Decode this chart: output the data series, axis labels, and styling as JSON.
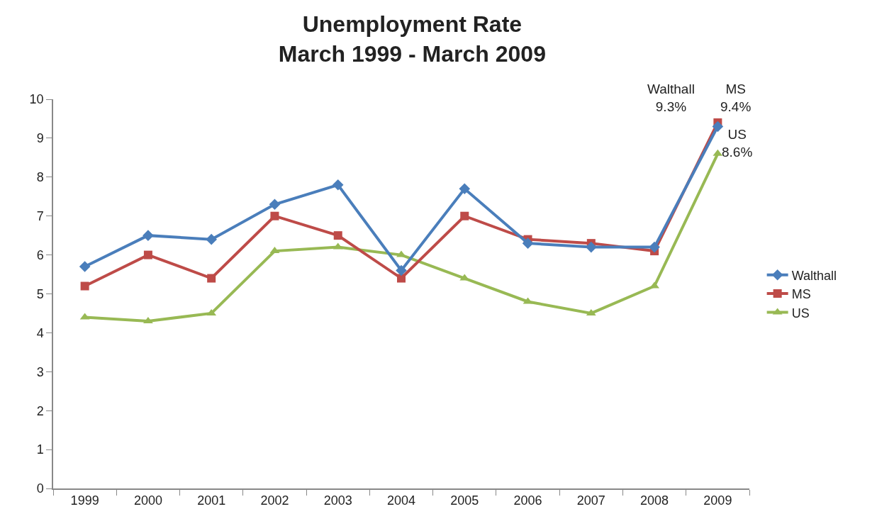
{
  "chart_data": {
    "type": "line",
    "title": "Unemployment Rate\nMarch 1999 - March 2009",
    "categories": [
      "1999",
      "2000",
      "2001",
      "2002",
      "2003",
      "2004",
      "2005",
      "2006",
      "2007",
      "2008",
      "2009"
    ],
    "series": [
      {
        "name": "Walthall",
        "color": "#4a7ebb",
        "marker": "diamond",
        "values": [
          5.7,
          6.5,
          6.4,
          7.3,
          7.8,
          5.6,
          7.7,
          6.3,
          6.2,
          6.2,
          9.3
        ]
      },
      {
        "name": "MS",
        "color": "#be4b48",
        "marker": "square",
        "values": [
          5.2,
          6.0,
          5.4,
          7.0,
          6.5,
          5.4,
          7.0,
          6.4,
          6.3,
          6.1,
          9.4
        ]
      },
      {
        "name": "US",
        "color": "#98b954",
        "marker": "triangle",
        "values": [
          4.4,
          4.3,
          4.5,
          6.1,
          6.2,
          6.0,
          5.4,
          4.8,
          4.5,
          5.2,
          8.6
        ]
      }
    ],
    "ylim": [
      0,
      10
    ],
    "yticks": [
      0,
      1,
      2,
      3,
      4,
      5,
      6,
      7,
      8,
      9,
      10
    ],
    "grid": false,
    "legend": "right",
    "annotations": [
      {
        "text": "Walthall\n9.3%",
        "x": "2009",
        "y": 9.3
      },
      {
        "text": "MS\n9.4%",
        "x": "2009",
        "y": 9.4
      },
      {
        "text": "US\n8.6%",
        "x": "2009",
        "y": 8.6
      }
    ]
  }
}
